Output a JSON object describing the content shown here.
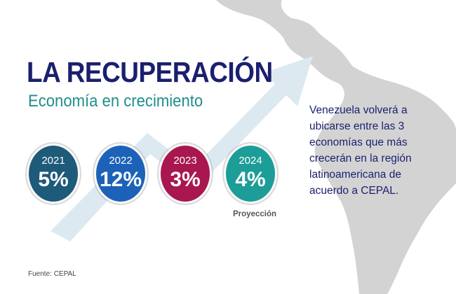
{
  "header": {
    "title": "LA RECUPERACIÓN",
    "subtitle": "Economía en crecimiento"
  },
  "stats": [
    {
      "year": "2021",
      "value": "5%",
      "color": "#1e5a7a"
    },
    {
      "year": "2022",
      "value": "12%",
      "color": "#1c62b8"
    },
    {
      "year": "2023",
      "value": "3%",
      "color": "#a8174f"
    },
    {
      "year": "2024",
      "value": "4%",
      "color": "#1d9d97"
    }
  ],
  "projection_note": "Proyección",
  "source": "Fuente: CEPAL",
  "description": {
    "lines": [
      "Venezuela volverá a",
      "ubicarse entre las 3",
      "economías que más",
      "crecerán en la región",
      "latinoamericana de",
      "acuerdo a CEPAL."
    ]
  },
  "colors": {
    "title": "#1b1f6e",
    "subtitle": "#1f8f8a",
    "arrow": "#dde9f1",
    "map": "#d3d3d3"
  }
}
